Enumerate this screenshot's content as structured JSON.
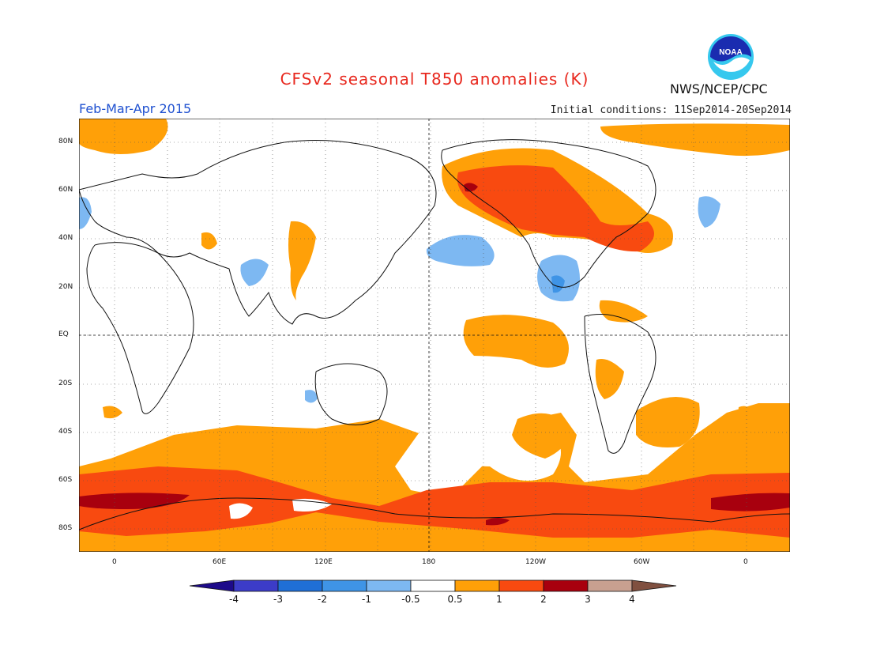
{
  "header": {
    "title": "CFSv2 seasonal T850 anomalies (K)",
    "season": "Feb-Mar-Apr 2015",
    "initial_conditions": "Initial conditions: 11Sep2014-20Sep2014",
    "agency": "NWS/NCEP/CPC",
    "logo_text": "NOAA"
  },
  "map": {
    "lat_labels": [
      "80N",
      "60N",
      "40N",
      "20N",
      "EQ",
      "20S",
      "40S",
      "60S",
      "80S"
    ],
    "lon_labels": [
      "0",
      "60E",
      "120E",
      "180",
      "120W",
      "60W",
      "0"
    ]
  },
  "colorbar": {
    "labels": [
      "-4",
      "-3",
      "-2",
      "-1",
      "-0.5",
      "0.5",
      "1",
      "2",
      "3",
      "4"
    ],
    "colors": {
      "lt_-4": "#1d0a8a",
      "-4_-3": "#3c3cc8",
      "-3_-2": "#1f6fd6",
      "-2_-1": "#3f94e6",
      "-1_-0.5": "#7db8f2",
      "-0.5_0.5": "#ffffff",
      "0.5_1": "#ffa008",
      "1_2": "#f84a10",
      "2_3": "#a8000e",
      "3_4": "#c8a090",
      "gt_4": "#805040"
    }
  }
}
